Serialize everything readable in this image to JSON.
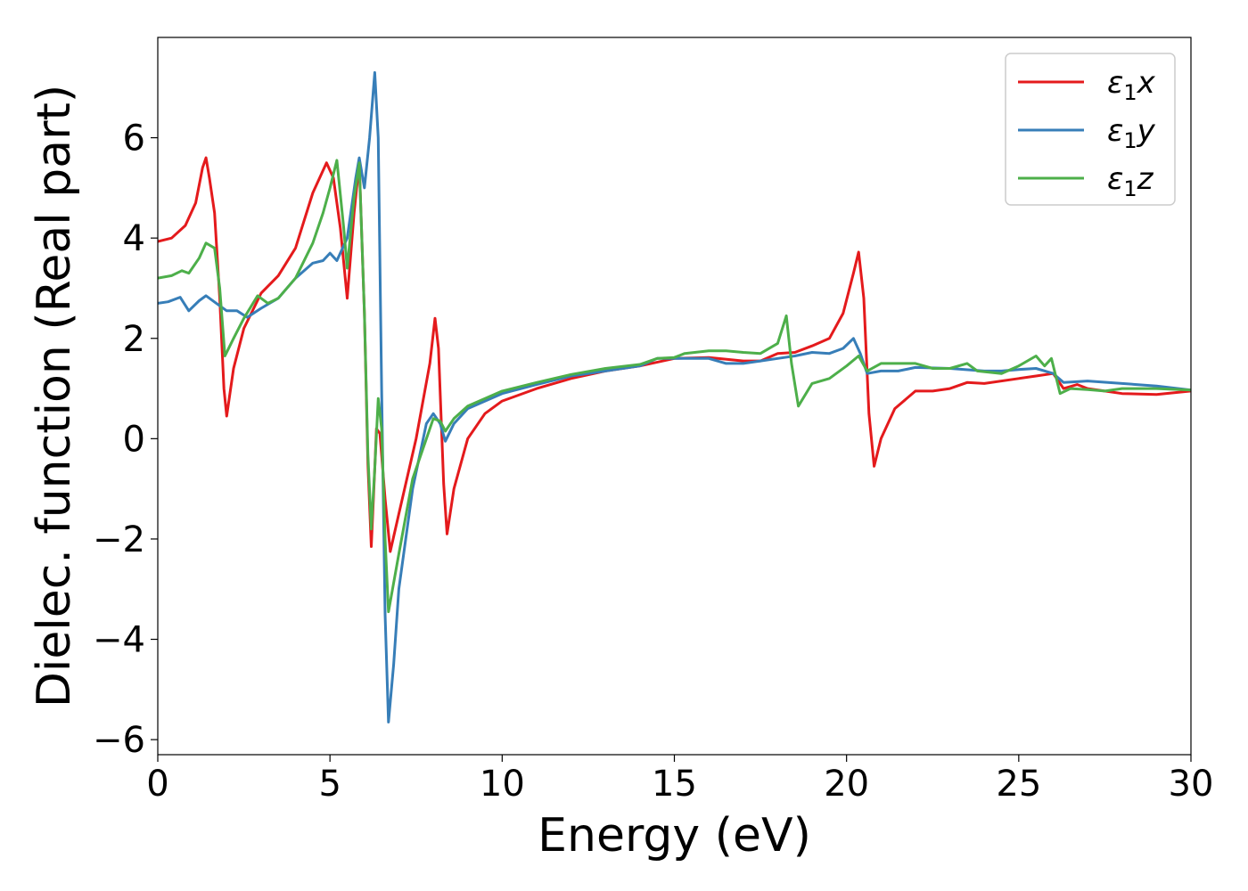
{
  "chart_data": {
    "type": "line",
    "title": "",
    "xlabel": "Energy (eV)",
    "ylabel": "Dielec. function (Real part)",
    "xlim": [
      0,
      30
    ],
    "ylim": [
      -6.3,
      8.0
    ],
    "xticks": [
      0,
      5,
      10,
      15,
      20,
      25,
      30
    ],
    "xtick_labels": [
      "0",
      "5",
      "10",
      "15",
      "20",
      "25",
      "30"
    ],
    "yticks": [
      -6,
      -4,
      -2,
      0,
      2,
      4,
      6
    ],
    "ytick_labels": [
      "−6",
      "−4",
      "−2",
      "0",
      "2",
      "4",
      "6"
    ],
    "grid": false,
    "legend_position": "top-right",
    "series": [
      {
        "name": "ε₁x",
        "legend_main": "ε",
        "legend_sub": "1",
        "legend_tail": "x",
        "color": "#e41a1c",
        "points": [
          [
            0,
            3.93
          ],
          [
            0.4,
            4.0
          ],
          [
            0.8,
            4.25
          ],
          [
            1.1,
            4.7
          ],
          [
            1.3,
            5.4
          ],
          [
            1.4,
            5.6
          ],
          [
            1.5,
            5.2
          ],
          [
            1.65,
            4.5
          ],
          [
            1.8,
            2.8
          ],
          [
            1.92,
            1.0
          ],
          [
            2.0,
            0.45
          ],
          [
            2.2,
            1.4
          ],
          [
            2.5,
            2.2
          ],
          [
            3.0,
            2.9
          ],
          [
            3.5,
            3.25
          ],
          [
            4.0,
            3.8
          ],
          [
            4.5,
            4.9
          ],
          [
            4.9,
            5.5
          ],
          [
            5.1,
            5.2
          ],
          [
            5.3,
            4.2
          ],
          [
            5.5,
            2.8
          ],
          [
            5.7,
            4.5
          ],
          [
            5.85,
            5.5
          ],
          [
            6.0,
            2.5
          ],
          [
            6.1,
            -0.5
          ],
          [
            6.2,
            -2.15
          ],
          [
            6.3,
            -0.6
          ],
          [
            6.35,
            0.2
          ],
          [
            6.45,
            0.1
          ],
          [
            6.6,
            -1.2
          ],
          [
            6.75,
            -2.25
          ],
          [
            7.0,
            -1.5
          ],
          [
            7.5,
            0.0
          ],
          [
            7.9,
            1.5
          ],
          [
            8.05,
            2.4
          ],
          [
            8.15,
            1.8
          ],
          [
            8.3,
            -0.9
          ],
          [
            8.4,
            -1.9
          ],
          [
            8.6,
            -1.0
          ],
          [
            9.0,
            0.0
          ],
          [
            9.5,
            0.5
          ],
          [
            10,
            0.75
          ],
          [
            11,
            1.0
          ],
          [
            12,
            1.2
          ],
          [
            13,
            1.35
          ],
          [
            14,
            1.45
          ],
          [
            15,
            1.6
          ],
          [
            16,
            1.62
          ],
          [
            17,
            1.55
          ],
          [
            17.5,
            1.55
          ],
          [
            18,
            1.7
          ],
          [
            18.5,
            1.72
          ],
          [
            19,
            1.85
          ],
          [
            19.5,
            2.0
          ],
          [
            19.9,
            2.5
          ],
          [
            20.2,
            3.3
          ],
          [
            20.35,
            3.72
          ],
          [
            20.5,
            2.8
          ],
          [
            20.65,
            0.5
          ],
          [
            20.8,
            -0.55
          ],
          [
            21.0,
            0.0
          ],
          [
            21.4,
            0.6
          ],
          [
            22,
            0.95
          ],
          [
            22.5,
            0.95
          ],
          [
            23,
            1.0
          ],
          [
            23.5,
            1.12
          ],
          [
            24,
            1.1
          ],
          [
            25,
            1.2
          ],
          [
            25.5,
            1.25
          ],
          [
            26,
            1.3
          ],
          [
            26.3,
            1.0
          ],
          [
            26.7,
            1.08
          ],
          [
            27,
            1.0
          ],
          [
            27.5,
            0.95
          ],
          [
            28,
            0.9
          ],
          [
            29,
            0.88
          ],
          [
            30,
            0.95
          ]
        ]
      },
      {
        "name": "ε₁y",
        "legend_main": "ε",
        "legend_sub": "1",
        "legend_tail": "y",
        "color": "#377eb8",
        "points": [
          [
            0,
            2.7
          ],
          [
            0.3,
            2.73
          ],
          [
            0.65,
            2.82
          ],
          [
            0.9,
            2.55
          ],
          [
            1.2,
            2.75
          ],
          [
            1.4,
            2.85
          ],
          [
            1.7,
            2.7
          ],
          [
            2.0,
            2.55
          ],
          [
            2.3,
            2.55
          ],
          [
            2.6,
            2.42
          ],
          [
            3.0,
            2.6
          ],
          [
            3.5,
            2.8
          ],
          [
            4.0,
            3.2
          ],
          [
            4.5,
            3.5
          ],
          [
            4.8,
            3.55
          ],
          [
            5.0,
            3.7
          ],
          [
            5.2,
            3.55
          ],
          [
            5.5,
            4.0
          ],
          [
            5.75,
            5.2
          ],
          [
            5.85,
            5.6
          ],
          [
            6.0,
            5.0
          ],
          [
            6.15,
            6.0
          ],
          [
            6.3,
            7.3
          ],
          [
            6.4,
            6.0
          ],
          [
            6.5,
            1.0
          ],
          [
            6.6,
            -3.5
          ],
          [
            6.7,
            -5.65
          ],
          [
            6.85,
            -4.5
          ],
          [
            7.0,
            -3.0
          ],
          [
            7.4,
            -1.0
          ],
          [
            7.8,
            0.3
          ],
          [
            8.0,
            0.5
          ],
          [
            8.2,
            0.3
          ],
          [
            8.35,
            -0.05
          ],
          [
            8.6,
            0.3
          ],
          [
            9.0,
            0.6
          ],
          [
            10,
            0.9
          ],
          [
            11,
            1.08
          ],
          [
            12,
            1.25
          ],
          [
            13,
            1.35
          ],
          [
            14,
            1.45
          ],
          [
            14.5,
            1.6
          ],
          [
            15,
            1.6
          ],
          [
            16,
            1.6
          ],
          [
            16.5,
            1.5
          ],
          [
            17,
            1.5
          ],
          [
            17.5,
            1.55
          ],
          [
            18,
            1.6
          ],
          [
            18.5,
            1.65
          ],
          [
            19,
            1.72
          ],
          [
            19.5,
            1.7
          ],
          [
            19.9,
            1.8
          ],
          [
            20.2,
            2.0
          ],
          [
            20.4,
            1.7
          ],
          [
            20.6,
            1.3
          ],
          [
            21,
            1.35
          ],
          [
            21.5,
            1.35
          ],
          [
            22,
            1.42
          ],
          [
            23,
            1.4
          ],
          [
            24,
            1.35
          ],
          [
            24.5,
            1.35
          ],
          [
            25,
            1.38
          ],
          [
            25.5,
            1.4
          ],
          [
            26,
            1.3
          ],
          [
            26.3,
            1.12
          ],
          [
            27,
            1.15
          ],
          [
            28,
            1.1
          ],
          [
            29,
            1.05
          ],
          [
            30,
            0.97
          ]
        ]
      },
      {
        "name": "ε₁z",
        "legend_main": "ε",
        "legend_sub": "1",
        "legend_tail": "z",
        "color": "#4daf4a",
        "points": [
          [
            0,
            3.2
          ],
          [
            0.4,
            3.25
          ],
          [
            0.7,
            3.35
          ],
          [
            0.9,
            3.3
          ],
          [
            1.2,
            3.6
          ],
          [
            1.4,
            3.9
          ],
          [
            1.65,
            3.8
          ],
          [
            1.8,
            3.0
          ],
          [
            1.95,
            1.65
          ],
          [
            2.2,
            2.0
          ],
          [
            2.5,
            2.4
          ],
          [
            2.9,
            2.85
          ],
          [
            3.2,
            2.7
          ],
          [
            3.5,
            2.8
          ],
          [
            4.0,
            3.2
          ],
          [
            4.5,
            3.9
          ],
          [
            4.8,
            4.5
          ],
          [
            5.0,
            5.0
          ],
          [
            5.2,
            5.55
          ],
          [
            5.4,
            4.2
          ],
          [
            5.5,
            3.4
          ],
          [
            5.7,
            4.8
          ],
          [
            5.85,
            5.5
          ],
          [
            6.0,
            2.5
          ],
          [
            6.1,
            -0.3
          ],
          [
            6.2,
            -1.8
          ],
          [
            6.3,
            -0.6
          ],
          [
            6.4,
            0.8
          ],
          [
            6.5,
            0.2
          ],
          [
            6.6,
            -2.0
          ],
          [
            6.7,
            -3.45
          ],
          [
            7.0,
            -2.3
          ],
          [
            7.4,
            -0.8
          ],
          [
            8.0,
            0.4
          ],
          [
            8.2,
            0.35
          ],
          [
            8.35,
            0.15
          ],
          [
            8.6,
            0.4
          ],
          [
            9.0,
            0.65
          ],
          [
            10,
            0.95
          ],
          [
            11,
            1.12
          ],
          [
            12,
            1.28
          ],
          [
            13,
            1.4
          ],
          [
            14,
            1.48
          ],
          [
            14.5,
            1.6
          ],
          [
            15,
            1.62
          ],
          [
            15.3,
            1.7
          ],
          [
            16,
            1.75
          ],
          [
            16.5,
            1.75
          ],
          [
            17,
            1.72
          ],
          [
            17.5,
            1.7
          ],
          [
            18,
            1.9
          ],
          [
            18.25,
            2.45
          ],
          [
            18.4,
            1.5
          ],
          [
            18.6,
            0.65
          ],
          [
            19,
            1.1
          ],
          [
            19.5,
            1.2
          ],
          [
            20,
            1.45
          ],
          [
            20.35,
            1.65
          ],
          [
            20.6,
            1.35
          ],
          [
            21,
            1.5
          ],
          [
            21.5,
            1.5
          ],
          [
            22,
            1.5
          ],
          [
            22.5,
            1.4
          ],
          [
            23,
            1.4
          ],
          [
            23.5,
            1.5
          ],
          [
            23.8,
            1.35
          ],
          [
            24.5,
            1.3
          ],
          [
            25,
            1.45
          ],
          [
            25.5,
            1.65
          ],
          [
            25.75,
            1.45
          ],
          [
            25.95,
            1.6
          ],
          [
            26.2,
            0.9
          ],
          [
            26.5,
            1.0
          ],
          [
            27,
            0.98
          ],
          [
            27.5,
            0.95
          ],
          [
            28,
            1.0
          ],
          [
            29,
            1.0
          ],
          [
            30,
            0.97
          ]
        ]
      }
    ]
  }
}
